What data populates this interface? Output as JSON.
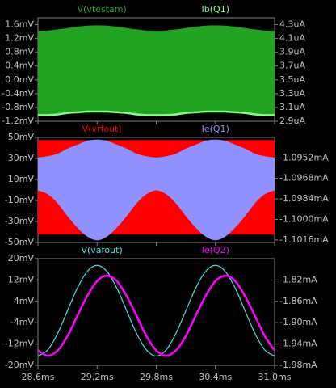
{
  "chart_data": [
    {
      "type": "line",
      "x": [
        28.6,
        28.7,
        28.8,
        28.9,
        29.0,
        29.1,
        29.2,
        29.3,
        29.4,
        29.5,
        29.6,
        29.7,
        29.8,
        29.9,
        30.0,
        30.1,
        30.2,
        30.3,
        30.4,
        30.5,
        30.6,
        30.7,
        30.8,
        30.9,
        31.0
      ],
      "xlim": [
        28.6,
        31.0
      ],
      "ylim": [
        -1.2,
        1.8
      ],
      "yticks": [
        {
          "value": 1.6,
          "label": "1.6mV"
        },
        {
          "value": 1.2,
          "label": "1.2mV"
        },
        {
          "value": 0.8,
          "label": "0.8mV"
        },
        {
          "value": 0.4,
          "label": "0.4mV"
        },
        {
          "value": 0,
          "label": "0.0mV"
        },
        {
          "value": -0.4,
          "label": "-0.4mV"
        },
        {
          "value": -0.8,
          "label": "-0.8mV"
        },
        {
          "value": -1.2,
          "label": "-1.2mV"
        }
      ],
      "y2lim": [
        2.9,
        4.4
      ],
      "y2ticks": [
        {
          "value": 4.3,
          "label": "4.3uA"
        },
        {
          "value": 4.1,
          "label": "4.1uA"
        },
        {
          "value": 3.9,
          "label": "3.9uA"
        },
        {
          "value": 3.7,
          "label": "3.7uA"
        },
        {
          "value": 3.5,
          "label": "3.5uA"
        },
        {
          "value": 3.3,
          "label": "3.3uA"
        },
        {
          "value": 3.1,
          "label": "3.1uA"
        },
        {
          "value": 2.9,
          "label": "2.9uA"
        }
      ],
      "series": [
        {
          "name": "V(vtestam)",
          "color": "#22a322",
          "max": [
            1.41,
            1.42,
            1.45,
            1.49,
            1.53,
            1.56,
            1.57,
            1.56,
            1.53,
            1.49,
            1.45,
            1.42,
            1.41,
            1.42,
            1.45,
            1.49,
            1.53,
            1.56,
            1.57,
            1.56,
            1.53,
            1.49,
            1.45,
            1.42,
            1.41
          ],
          "min": [
            -1.0,
            -0.99,
            -0.98,
            -0.96,
            -0.94,
            -0.93,
            -0.92,
            -0.93,
            -0.94,
            -0.96,
            -0.98,
            -0.99,
            -1.0,
            -0.99,
            -0.98,
            -0.96,
            -0.94,
            -0.93,
            -0.92,
            -0.93,
            -0.94,
            -0.96,
            -0.98,
            -0.99,
            -1.0
          ]
        },
        {
          "name": "Ib(Q1)",
          "color": "#80ff80",
          "axis": "y2",
          "values": [
            2.99,
            2.99,
            3.0,
            3.02,
            3.03,
            3.04,
            3.04,
            3.04,
            3.03,
            3.02,
            3.0,
            2.99,
            2.99,
            2.99,
            3.0,
            3.02,
            3.03,
            3.04,
            3.04,
            3.04,
            3.03,
            3.02,
            3.0,
            2.99,
            2.99
          ]
        }
      ]
    },
    {
      "type": "line",
      "x": [
        28.6,
        28.7,
        28.8,
        28.9,
        29.0,
        29.1,
        29.2,
        29.3,
        29.4,
        29.5,
        29.6,
        29.7,
        29.8,
        29.9,
        30.0,
        30.1,
        30.2,
        30.3,
        30.4,
        30.5,
        30.6,
        30.7,
        30.8,
        30.9,
        31.0
      ],
      "xlim": [
        28.6,
        31.0
      ],
      "ylim": [
        -50,
        50
      ],
      "yticks": [
        {
          "value": 50,
          "label": "50mV"
        },
        {
          "value": 30,
          "label": "30mV"
        },
        {
          "value": 10,
          "label": "10mV"
        },
        {
          "value": -10,
          "label": "-10mV"
        },
        {
          "value": -30,
          "label": "-30mV"
        },
        {
          "value": -50,
          "label": "-50mV"
        }
      ],
      "y2lim": [
        -1.1018,
        -1.0936
      ],
      "y2ticks": [
        {
          "value": -1.0952,
          "label": "-1.0952mA"
        },
        {
          "value": -1.0968,
          "label": "-1.0968mA"
        },
        {
          "value": -1.0984,
          "label": "-1.0984mA"
        },
        {
          "value": -1.1,
          "label": "-1.1000mA"
        },
        {
          "value": -1.1016,
          "label": "-1.1016mA"
        }
      ],
      "series": [
        {
          "name": "V(vrfout)",
          "color": "#ff0000",
          "max": [
            47,
            47,
            47,
            47,
            47,
            47,
            47,
            47,
            47,
            47,
            47,
            47,
            47,
            47,
            47,
            47,
            47,
            47,
            47,
            47,
            47,
            47,
            47,
            47,
            47
          ],
          "min": [
            -42,
            -42,
            -42,
            -42,
            -42,
            -42,
            -42,
            -42,
            -42,
            -42,
            -42,
            -42,
            -42,
            -42,
            -42,
            -42,
            -42,
            -42,
            -42,
            -42,
            -42,
            -42,
            -42,
            -42,
            -42
          ]
        },
        {
          "name": "Ie(Q1)",
          "color": "#9090ff",
          "axis": "y2",
          "max": [
            -1.0952,
            -1.0951,
            -1.0949,
            -1.0945,
            -1.0942,
            -1.0939,
            -1.0938,
            -1.0939,
            -1.0942,
            -1.0945,
            -1.0949,
            -1.0951,
            -1.0952,
            -1.0951,
            -1.0949,
            -1.0945,
            -1.0942,
            -1.0939,
            -1.0938,
            -1.0939,
            -1.0942,
            -1.0945,
            -1.0949,
            -1.0951,
            -1.0952
          ],
          "min": [
            -1.0977,
            -1.098,
            -1.0987,
            -1.0997,
            -1.1006,
            -1.1013,
            -1.1016,
            -1.1013,
            -1.1006,
            -1.0997,
            -1.0987,
            -1.098,
            -1.0977,
            -1.098,
            -1.0987,
            -1.0997,
            -1.1006,
            -1.1013,
            -1.1016,
            -1.1013,
            -1.1006,
            -1.0997,
            -1.0987,
            -1.098,
            -1.0977
          ]
        }
      ]
    },
    {
      "type": "line",
      "x": [
        28.6,
        28.7,
        28.8,
        28.9,
        29.0,
        29.1,
        29.2,
        29.3,
        29.4,
        29.5,
        29.6,
        29.7,
        29.8,
        29.9,
        30.0,
        30.1,
        30.2,
        30.3,
        30.4,
        30.5,
        30.6,
        30.7,
        30.8,
        30.9,
        31.0
      ],
      "xlim": [
        28.6,
        31.0
      ],
      "xticks": [
        {
          "value": 28.6,
          "label": "28.6ms"
        },
        {
          "value": 29.2,
          "label": "29.2ms"
        },
        {
          "value": 29.8,
          "label": "29.8ms"
        },
        {
          "value": 30.4,
          "label": "30.4ms"
        },
        {
          "value": 31.0,
          "label": "31.0ms"
        }
      ],
      "ylim": [
        -20,
        20
      ],
      "yticks": [
        {
          "value": 20,
          "label": "20mV"
        },
        {
          "value": 12,
          "label": "12mV"
        },
        {
          "value": 4,
          "label": "4mV"
        },
        {
          "value": -4,
          "label": "-4mV"
        },
        {
          "value": -12,
          "label": "-12mV"
        },
        {
          "value": -20,
          "label": "-20mV"
        }
      ],
      "y2lim": [
        -1.98,
        -1.78
      ],
      "y2ticks": [
        {
          "value": -1.82,
          "label": "-1.82mA"
        },
        {
          "value": -1.86,
          "label": "-1.86mA"
        },
        {
          "value": -1.9,
          "label": "-1.90mA"
        },
        {
          "value": -1.94,
          "label": "-1.94mA"
        },
        {
          "value": -1.98,
          "label": "-1.98mA"
        }
      ],
      "series": [
        {
          "name": "V(vafout)",
          "color": "#40e0e0",
          "values": [
            -16.5,
            -14.2,
            -8.0,
            0.5,
            9.0,
            15.2,
            17.5,
            15.2,
            9.0,
            0.5,
            -8.0,
            -14.2,
            -16.5,
            -14.2,
            -8.0,
            0.5,
            9.0,
            15.2,
            17.5,
            15.2,
            9.0,
            0.5,
            -8.0,
            -14.2,
            -16.5
          ]
        },
        {
          "name": "Ie(Q2)",
          "color": "#ff00ff",
          "axis": "y2",
          "values": [
            -1.952,
            -1.962,
            -1.952,
            -1.925,
            -1.887,
            -1.85,
            -1.822,
            -1.812,
            -1.822,
            -1.85,
            -1.887,
            -1.925,
            -1.952,
            -1.962,
            -1.952,
            -1.925,
            -1.887,
            -1.85,
            -1.822,
            -1.812,
            -1.822,
            -1.85,
            -1.887,
            -1.925,
            -1.952
          ]
        }
      ]
    }
  ]
}
